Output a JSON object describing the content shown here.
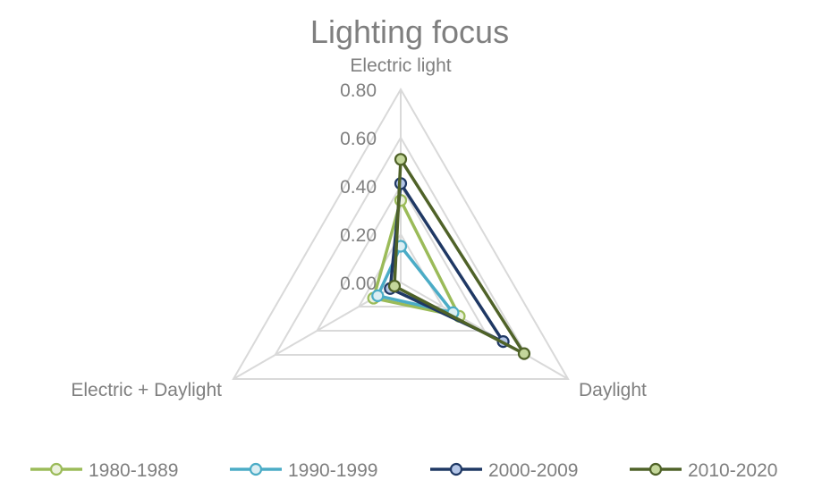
{
  "chart_data": {
    "type": "radar",
    "title": "Lighting focus",
    "axes": [
      "Electric light",
      "Daylight",
      "Electric + Daylight"
    ],
    "ticks": [
      "0.00",
      "0.20",
      "0.40",
      "0.60",
      "0.80"
    ],
    "range": [
      0,
      0.8
    ],
    "grid": true,
    "legend_position": "bottom",
    "series": [
      {
        "name": "1980-1989",
        "values": [
          0.34,
          0.28,
          0.13
        ],
        "color": "#9bbb59",
        "marker_fill": "#ebf1dd"
      },
      {
        "name": "1990-1999",
        "values": [
          0.15,
          0.25,
          0.11
        ],
        "color": "#4bacc6",
        "marker_fill": "#dbeef3"
      },
      {
        "name": "2000-2009",
        "values": [
          0.41,
          0.49,
          0.05
        ],
        "color": "#1f3864",
        "marker_fill": "#b4c6e7"
      },
      {
        "name": "2010-2020",
        "values": [
          0.51,
          0.59,
          0.03
        ],
        "color": "#4f6228",
        "marker_fill": "#c4d79b"
      }
    ]
  }
}
